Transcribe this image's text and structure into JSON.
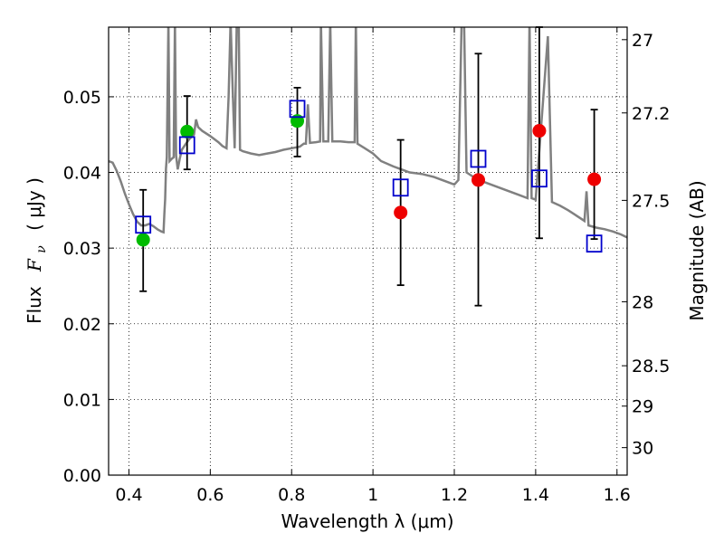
{
  "chart_data": {
    "type": "scatter",
    "xlabel": "Wavelength  λ (μm)",
    "ylabel": {
      "prefix": "Flux",
      "symbol": "F",
      "subscript": "ν",
      "units": "( μJy )"
    },
    "y2label": "Magnitude (AB)",
    "xlim": [
      0.35,
      1.625
    ],
    "ylim": [
      0.0,
      0.0592
    ],
    "x_ticks": [
      0.4,
      0.6,
      0.8,
      1.0,
      1.2,
      1.4,
      1.6
    ],
    "x_tick_labels": [
      "0.4",
      "0.6",
      "0.8",
      "1",
      "1.2",
      "1.4",
      "1.6"
    ],
    "y_ticks": [
      0.0,
      0.01,
      0.02,
      0.03,
      0.04,
      0.05
    ],
    "y_tick_labels": [
      "0.00",
      "0.01",
      "0.02",
      "0.03",
      "0.04",
      "0.05"
    ],
    "y2_ticks": [
      27,
      27.2,
      27.5,
      28,
      28.5,
      29,
      30
    ],
    "y2_tick_labels": [
      "27",
      "27.2",
      "27.5",
      "28",
      "28.5",
      "29",
      "30"
    ],
    "grid": true,
    "colors": {
      "sed": "#808080",
      "green": "#00bb00",
      "red": "#ee0000",
      "model_box": "#0000cc",
      "errorbar": "#000000"
    },
    "series": [
      {
        "marker": "circle-green",
        "x": [
          0.435,
          0.543,
          0.814
        ],
        "y": [
          0.0311,
          0.0454,
          0.0468
        ]
      },
      {
        "marker": "circle-red",
        "x": [
          1.068,
          1.259,
          1.409,
          1.544
        ],
        "y": [
          0.0347,
          0.039,
          0.0455,
          0.0391
        ]
      },
      {
        "marker": "open-square-blue",
        "x": [
          0.435,
          0.543,
          0.814,
          1.068,
          1.259,
          1.409,
          1.544
        ],
        "y": [
          0.0331,
          0.0436,
          0.0484,
          0.038,
          0.0418,
          0.0392,
          0.0306
        ]
      }
    ],
    "errorbars": [
      {
        "x": 0.435,
        "low": 0.0243,
        "high": 0.0377
      },
      {
        "x": 0.543,
        "low": 0.0404,
        "high": 0.0501
      },
      {
        "x": 0.814,
        "low": 0.0421,
        "high": 0.0512
      },
      {
        "x": 1.068,
        "low": 0.0251,
        "high": 0.0443
      },
      {
        "x": 1.259,
        "low": 0.0224,
        "high": 0.0557
      },
      {
        "x": 1.409,
        "low": 0.0313,
        "high": 0.0592
      },
      {
        "x": 1.544,
        "low": 0.0312,
        "high": 0.0483
      }
    ],
    "sed_curve": [
      [
        0.35,
        0.0415
      ],
      [
        0.36,
        0.0413
      ],
      [
        0.37,
        0.0402
      ],
      [
        0.38,
        0.0388
      ],
      [
        0.39,
        0.0372
      ],
      [
        0.4,
        0.0358
      ],
      [
        0.41,
        0.0345
      ],
      [
        0.42,
        0.0335
      ],
      [
        0.43,
        0.033
      ],
      [
        0.44,
        0.033
      ],
      [
        0.45,
        0.0332
      ],
      [
        0.46,
        0.0329
      ],
      [
        0.47,
        0.0325
      ],
      [
        0.48,
        0.0322
      ],
      [
        0.485,
        0.0321
      ],
      [
        0.487,
        0.0345
      ],
      [
        0.489,
        0.0365
      ],
      [
        0.491,
        0.0405
      ],
      [
        0.493,
        0.042
      ],
      [
        0.497,
        0.06
      ],
      [
        0.5,
        0.0415
      ],
      [
        0.505,
        0.0418
      ],
      [
        0.51,
        0.042
      ],
      [
        0.513,
        0.06
      ],
      [
        0.516,
        0.0422
      ],
      [
        0.52,
        0.0404
      ],
      [
        0.525,
        0.0418
      ],
      [
        0.53,
        0.043
      ],
      [
        0.54,
        0.0438
      ],
      [
        0.55,
        0.0445
      ],
      [
        0.56,
        0.045
      ],
      [
        0.565,
        0.047
      ],
      [
        0.57,
        0.046
      ],
      [
        0.58,
        0.0455
      ],
      [
        0.6,
        0.0448
      ],
      [
        0.62,
        0.044
      ],
      [
        0.63,
        0.0435
      ],
      [
        0.64,
        0.0432
      ],
      [
        0.645,
        0.05
      ],
      [
        0.65,
        0.06
      ],
      [
        0.655,
        0.051
      ],
      [
        0.66,
        0.0432
      ],
      [
        0.665,
        0.06
      ],
      [
        0.67,
        0.06
      ],
      [
        0.673,
        0.043
      ],
      [
        0.68,
        0.0428
      ],
      [
        0.7,
        0.0425
      ],
      [
        0.72,
        0.0423
      ],
      [
        0.74,
        0.0425
      ],
      [
        0.76,
        0.0427
      ],
      [
        0.78,
        0.043
      ],
      [
        0.8,
        0.0432
      ],
      [
        0.82,
        0.0434
      ],
      [
        0.83,
        0.0438
      ],
      [
        0.835,
        0.0438
      ],
      [
        0.84,
        0.049
      ],
      [
        0.845,
        0.0439
      ],
      [
        0.86,
        0.044
      ],
      [
        0.87,
        0.0441
      ],
      [
        0.872,
        0.06
      ],
      [
        0.878,
        0.0441
      ],
      [
        0.89,
        0.0441
      ],
      [
        0.895,
        0.06
      ],
      [
        0.9,
        0.0441
      ],
      [
        0.92,
        0.0441
      ],
      [
        0.94,
        0.044
      ],
      [
        0.955,
        0.044
      ],
      [
        0.958,
        0.06
      ],
      [
        0.962,
        0.0438
      ],
      [
        0.98,
        0.0432
      ],
      [
        1.0,
        0.0425
      ],
      [
        1.02,
        0.0415
      ],
      [
        1.05,
        0.0408
      ],
      [
        1.07,
        0.0404
      ],
      [
        1.09,
        0.04
      ],
      [
        1.12,
        0.0398
      ],
      [
        1.15,
        0.0394
      ],
      [
        1.18,
        0.0388
      ],
      [
        1.2,
        0.0384
      ],
      [
        1.21,
        0.039
      ],
      [
        1.218,
        0.06
      ],
      [
        1.224,
        0.06
      ],
      [
        1.23,
        0.04
      ],
      [
        1.25,
        0.0393
      ],
      [
        1.27,
        0.0388
      ],
      [
        1.3,
        0.0382
      ],
      [
        1.33,
        0.0376
      ],
      [
        1.36,
        0.037
      ],
      [
        1.38,
        0.0366
      ],
      [
        1.385,
        0.06
      ],
      [
        1.39,
        0.0366
      ],
      [
        1.4,
        0.0364
      ],
      [
        1.43,
        0.058
      ],
      [
        1.44,
        0.0361
      ],
      [
        1.46,
        0.0356
      ],
      [
        1.48,
        0.035
      ],
      [
        1.5,
        0.0343
      ],
      [
        1.52,
        0.0336
      ],
      [
        1.525,
        0.0375
      ],
      [
        1.53,
        0.033
      ],
      [
        1.55,
        0.0327
      ],
      [
        1.57,
        0.0325
      ],
      [
        1.59,
        0.0322
      ],
      [
        1.61,
        0.0318
      ],
      [
        1.625,
        0.0314
      ]
    ]
  }
}
